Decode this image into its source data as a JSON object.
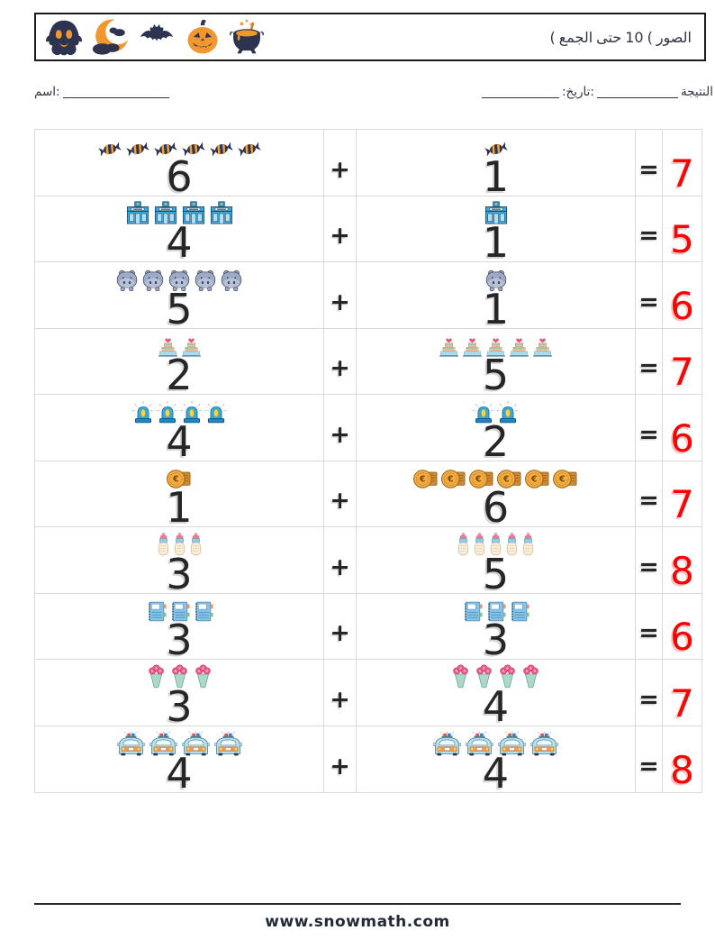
{
  "header": {
    "title_tokens": [
      "(",
      "الجمع",
      "حتى",
      "10",
      "(",
      "الصور"
    ],
    "icons": [
      "ghost",
      "moon",
      "bat",
      "pumpkin",
      "cauldron"
    ]
  },
  "fields": {
    "name_label": "اسم:",
    "date_label": ":تاريخ:",
    "result_label": "النتيجة"
  },
  "operators": {
    "plus": "+",
    "equals": "="
  },
  "rows": [
    {
      "left": {
        "icon": "candy",
        "count": 6
      },
      "right": {
        "icon": "candy",
        "count": 1
      },
      "answer": "7"
    },
    {
      "left": {
        "icon": "police-station",
        "count": 4
      },
      "right": {
        "icon": "police-station",
        "count": 1
      },
      "answer": "5"
    },
    {
      "left": {
        "icon": "hippo",
        "count": 5
      },
      "right": {
        "icon": "hippo",
        "count": 1
      },
      "answer": "6"
    },
    {
      "left": {
        "icon": "cake",
        "count": 2
      },
      "right": {
        "icon": "cake",
        "count": 5
      },
      "answer": "7"
    },
    {
      "left": {
        "icon": "siren",
        "count": 4
      },
      "right": {
        "icon": "siren",
        "count": 2
      },
      "answer": "6"
    },
    {
      "left": {
        "icon": "coin",
        "count": 1
      },
      "right": {
        "icon": "coin",
        "count": 6
      },
      "answer": "7"
    },
    {
      "left": {
        "icon": "baby-bottle",
        "count": 3
      },
      "right": {
        "icon": "baby-bottle",
        "count": 5
      },
      "answer": "8"
    },
    {
      "left": {
        "icon": "notebook",
        "count": 3
      },
      "right": {
        "icon": "notebook",
        "count": 3
      },
      "answer": "6"
    },
    {
      "left": {
        "icon": "bouquet",
        "count": 3
      },
      "right": {
        "icon": "bouquet",
        "count": 4
      },
      "answer": "7"
    },
    {
      "left": {
        "icon": "police-car",
        "count": 4
      },
      "right": {
        "icon": "police-car",
        "count": 4
      },
      "answer": "8"
    }
  ],
  "footer": {
    "url": "www.snowmath.com"
  },
  "colors": {
    "answer_red": "#ff0000",
    "halloween_navy": "#2e3450",
    "halloween_orange": "#f0982f"
  }
}
